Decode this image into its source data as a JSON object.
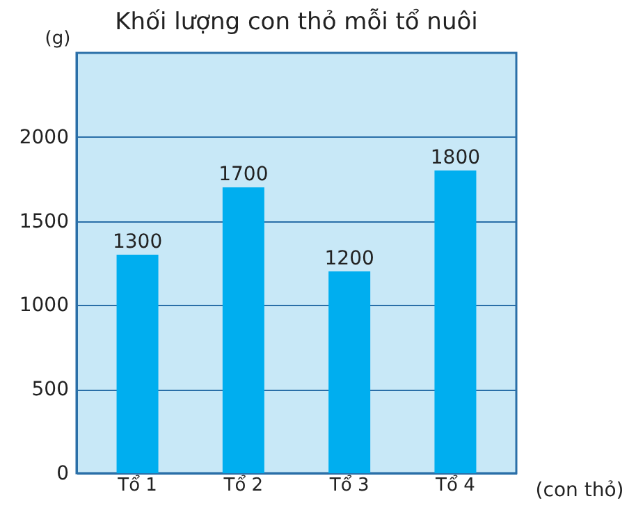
{
  "chart_data": {
    "type": "bar",
    "title": "Khối lượng con thỏ mỗi tổ nuôi",
    "xlabel": "(con thỏ)",
    "ylabel": "(g)",
    "categories": [
      "Tổ 1",
      "Tổ 2",
      "Tổ 3",
      "Tổ 4"
    ],
    "values": [
      1300,
      1700,
      1200,
      1800
    ],
    "color": "#00aeef",
    "ylim": [
      0,
      2500
    ],
    "yticks": [
      0,
      500,
      1000,
      1500,
      2000
    ],
    "grid": "y",
    "data_labels": true
  }
}
